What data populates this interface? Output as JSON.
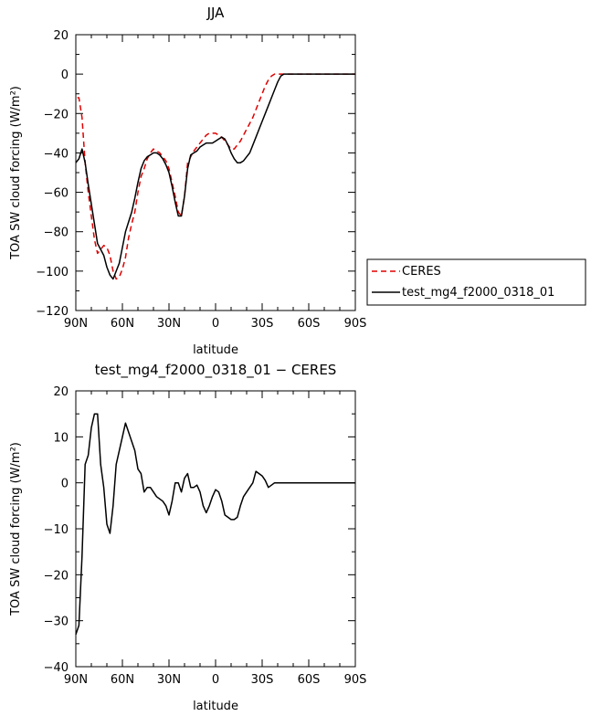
{
  "chart_data": [
    {
      "type": "line",
      "title": "JJA",
      "xlabel": "latitude",
      "ylabel": "TOA SW cloud forcing (W/m²)",
      "xlim": [
        90,
        -90
      ],
      "ylim": [
        -120,
        20
      ],
      "xticks": [
        90,
        60,
        30,
        0,
        -30,
        -60,
        -90
      ],
      "xtick_labels": [
        "90N",
        "60N",
        "30N",
        "0",
        "30S",
        "60S",
        "90S"
      ],
      "yticks": [
        20,
        0,
        -20,
        -40,
        -60,
        -80,
        -100,
        -120
      ],
      "ytick_labels": [
        "20",
        "0",
        "−20",
        "−40",
        "−60",
        "−80",
        "−100",
        "−120"
      ],
      "legend_position": "right",
      "series": [
        {
          "name": "CERES",
          "color": "#e00000",
          "dash": "dashed",
          "x": [
            89,
            88,
            86,
            84,
            82,
            80,
            78,
            76,
            74,
            72,
            70,
            68,
            66,
            64,
            62,
            60,
            58,
            56,
            54,
            52,
            50,
            48,
            46,
            44,
            42,
            40,
            38,
            36,
            34,
            32,
            30,
            28,
            26,
            24,
            22,
            20,
            18,
            16,
            14,
            12,
            10,
            8,
            6,
            4,
            2,
            0,
            -2,
            -4,
            -6,
            -8,
            -10,
            -12,
            -14,
            -16,
            -18,
            -20,
            -22,
            -24,
            -26,
            -28,
            -30,
            -32,
            -34,
            -36,
            -38,
            -40,
            -42,
            -44,
            -46,
            -48,
            -50,
            -52,
            -54,
            -56,
            -58,
            -60,
            -62,
            -64,
            -66,
            -68,
            -70,
            -72,
            -74,
            -76,
            -78,
            -80,
            -82,
            -84,
            -86,
            -88,
            -90
          ],
          "values": [
            -12,
            -12,
            -22,
            -45,
            -60,
            -72,
            -84,
            -91,
            -89,
            -87,
            -88,
            -92,
            -100,
            -104,
            -103,
            -99,
            -93,
            -83,
            -76,
            -70,
            -60,
            -52,
            -48,
            -43,
            -40,
            -38,
            -39,
            -40,
            -42,
            -44,
            -48,
            -55,
            -62,
            -70,
            -72,
            -62,
            -45,
            -42,
            -39,
            -37,
            -35,
            -33,
            -31,
            -30,
            -30,
            -30,
            -31,
            -32,
            -34,
            -36,
            -38,
            -38,
            -36,
            -34,
            -31,
            -28,
            -25,
            -22,
            -18,
            -14,
            -10,
            -6,
            -3,
            -1,
            0,
            0,
            0,
            0,
            0,
            0,
            0,
            0,
            0,
            0,
            0,
            0,
            0,
            0,
            0,
            0,
            0,
            0,
            0,
            0,
            0,
            0,
            0,
            0,
            0,
            0,
            0
          ]
        },
        {
          "name": "test_mg4_f2000_0318_01",
          "color": "#000000",
          "dash": "solid",
          "x": [
            90,
            88,
            86,
            84,
            82,
            80,
            78,
            76,
            74,
            72,
            70,
            68,
            66,
            64,
            62,
            60,
            58,
            56,
            54,
            52,
            50,
            48,
            46,
            44,
            42,
            40,
            38,
            36,
            34,
            32,
            30,
            28,
            26,
            24,
            22,
            20,
            18,
            16,
            14,
            12,
            10,
            8,
            6,
            4,
            2,
            0,
            -2,
            -4,
            -6,
            -8,
            -10,
            -12,
            -14,
            -16,
            -18,
            -20,
            -22,
            -24,
            -26,
            -28,
            -30,
            -32,
            -34,
            -36,
            -38,
            -40,
            -42,
            -44,
            -46,
            -48,
            -50,
            -52,
            -54,
            -56,
            -58,
            -60,
            -62,
            -64,
            -66,
            -68,
            -70,
            -72,
            -74,
            -76,
            -78,
            -80,
            -82,
            -84,
            -86,
            -88,
            -90
          ],
          "values": [
            -45,
            -43,
            -38,
            -45,
            -56,
            -66,
            -76,
            -86,
            -89,
            -92,
            -98,
            -102,
            -104,
            -100,
            -96,
            -88,
            -80,
            -75,
            -70,
            -63,
            -55,
            -48,
            -44,
            -42,
            -41,
            -40,
            -40,
            -41,
            -43,
            -46,
            -50,
            -57,
            -65,
            -72,
            -72,
            -62,
            -48,
            -41,
            -40,
            -39,
            -37,
            -36,
            -35,
            -35,
            -35,
            -34,
            -33,
            -32,
            -33,
            -36,
            -40,
            -43,
            -45,
            -45,
            -44,
            -42,
            -40,
            -36,
            -32,
            -28,
            -24,
            -20,
            -16,
            -12,
            -8,
            -4,
            -1,
            0,
            0,
            0,
            0,
            0,
            0,
            0,
            0,
            0,
            0,
            0,
            0,
            0,
            0,
            0,
            0,
            0,
            0,
            0,
            0,
            0,
            0,
            0,
            0
          ]
        }
      ]
    },
    {
      "type": "line",
      "title": "test_mg4_f2000_0318_01 − CERES",
      "xlabel": "latitude",
      "ylabel": "TOA SW cloud forcing (W/m²)",
      "xlim": [
        90,
        -90
      ],
      "ylim": [
        -40,
        20
      ],
      "xticks": [
        90,
        60,
        30,
        0,
        -30,
        -60,
        -90
      ],
      "xtick_labels": [
        "90N",
        "60N",
        "30N",
        "0",
        "30S",
        "60S",
        "90S"
      ],
      "yticks": [
        20,
        10,
        0,
        -10,
        -20,
        -30,
        -40
      ],
      "ytick_labels": [
        "20",
        "10",
        "0",
        "−10",
        "−20",
        "−30",
        "−40"
      ],
      "series": [
        {
          "color": "#000000",
          "dash": "solid",
          "x": [
            90,
            88,
            86,
            84,
            82,
            80,
            78,
            76,
            74,
            72,
            70,
            68,
            66,
            64,
            62,
            60,
            58,
            56,
            54,
            52,
            50,
            48,
            46,
            44,
            42,
            40,
            38,
            36,
            34,
            32,
            30,
            28,
            26,
            24,
            22,
            20,
            18,
            16,
            14,
            12,
            10,
            8,
            6,
            4,
            2,
            0,
            -2,
            -4,
            -6,
            -8,
            -10,
            -12,
            -14,
            -16,
            -18,
            -20,
            -22,
            -24,
            -26,
            -28,
            -30,
            -32,
            -34,
            -36,
            -38,
            -40,
            -42,
            -44,
            -46,
            -48,
            -50,
            -52,
            -54,
            -56,
            -58,
            -60,
            -62,
            -64,
            -66,
            -68,
            -70,
            -72,
            -74,
            -76,
            -78,
            -80,
            -82,
            -84,
            -86,
            -88,
            -90
          ],
          "values": [
            -33,
            -31,
            -16,
            4,
            6,
            12,
            15,
            15,
            4,
            -1,
            -9,
            -11,
            -5,
            4,
            7,
            10,
            13,
            11,
            9,
            7,
            3,
            2,
            -2,
            -1,
            -1,
            -2,
            -3,
            -3.5,
            -4,
            -5,
            -7,
            -4,
            0,
            0,
            -2,
            1,
            2,
            -1,
            -1,
            -0.5,
            -2,
            -5,
            -6.5,
            -5,
            -3,
            -1.5,
            -2,
            -4,
            -7,
            -7.5,
            -8,
            -8,
            -7.5,
            -5,
            -3,
            -2,
            -1,
            0,
            2.5,
            2,
            1.5,
            0.5,
            -1,
            -0.5,
            0,
            0,
            0,
            0,
            0,
            0,
            0,
            0,
            0,
            0,
            0,
            0,
            0,
            0,
            0,
            0,
            0,
            0,
            0,
            0,
            0,
            0,
            0,
            0,
            0,
            0,
            0
          ]
        }
      ]
    }
  ]
}
